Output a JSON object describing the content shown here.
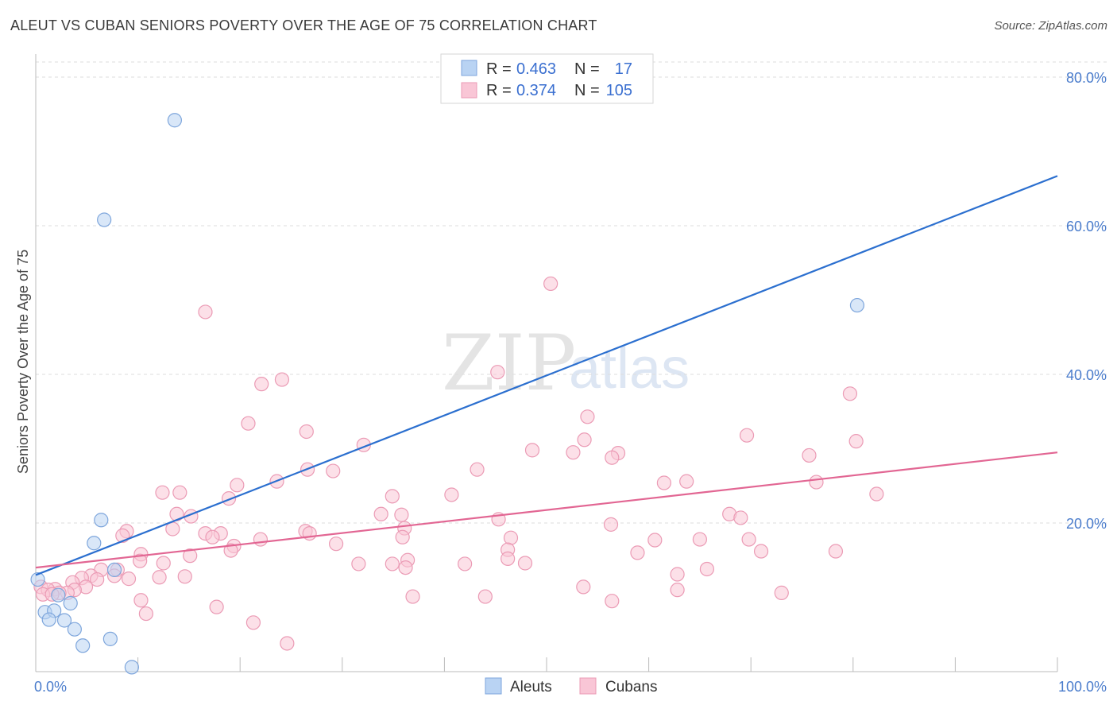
{
  "header": {
    "title": "ALEUT VS CUBAN SENIORS POVERTY OVER THE AGE OF 75 CORRELATION CHART",
    "source": "Source: ZipAtlas.com"
  },
  "watermark": {
    "zip": "ZIP",
    "atlas": "atlas"
  },
  "legend": {
    "r_label": "R =",
    "n_label": "N =",
    "rows": [
      {
        "series": "Aleuts",
        "r": "0.463",
        "n": "17"
      },
      {
        "series": "Cubans",
        "r": "0.374",
        "n": "105"
      }
    ]
  },
  "colors": {
    "aleuts_fill": "#b9d3f3",
    "aleuts_stroke": "#7ea6dc",
    "aleuts_line": "#2b6fcf",
    "cubans_fill": "#f9c6d6",
    "cubans_stroke": "#eb9bb5",
    "cubans_line": "#e26693",
    "axis_label": "#4a7ccc",
    "grid": "#dedede"
  },
  "chart_data": {
    "type": "scatter",
    "title": "ALEUT VS CUBAN SENIORS POVERTY OVER THE AGE OF 75 CORRELATION CHART",
    "xlabel": "",
    "ylabel": "Seniors Poverty Over the Age of 75",
    "xlim": [
      0,
      100
    ],
    "ylim": [
      0,
      80
    ],
    "x_tick_labels": [
      {
        "value": 0,
        "label": "0.0%"
      },
      {
        "value": 100,
        "label": "100.0%"
      }
    ],
    "y_tick_labels": [
      {
        "value": 20,
        "label": "20.0%"
      },
      {
        "value": 40,
        "label": "40.0%"
      },
      {
        "value": 60,
        "label": "60.0%"
      },
      {
        "value": 80,
        "label": "80.0%"
      }
    ],
    "legend_position": "top-center",
    "series": [
      {
        "name": "Aleuts",
        "r": 0.463,
        "n": 17,
        "trend": {
          "x": [
            0,
            100
          ],
          "y": [
            13.0,
            66.7
          ]
        },
        "points": [
          [
            13.6,
            74.2
          ],
          [
            6.7,
            60.8
          ],
          [
            80.4,
            49.3
          ],
          [
            6.4,
            20.4
          ],
          [
            5.7,
            17.3
          ],
          [
            7.7,
            13.7
          ],
          [
            0.2,
            12.4
          ],
          [
            2.2,
            10.3
          ],
          [
            3.4,
            9.2
          ],
          [
            0.9,
            8.0
          ],
          [
            1.8,
            8.2
          ],
          [
            1.3,
            7.0
          ],
          [
            2.8,
            6.9
          ],
          [
            3.8,
            5.7
          ],
          [
            7.3,
            4.4
          ],
          [
            4.6,
            3.5
          ],
          [
            9.4,
            0.6
          ]
        ]
      },
      {
        "name": "Cubans",
        "r": 0.374,
        "n": 105,
        "trend": {
          "x": [
            0,
            100
          ],
          "y": [
            14.0,
            29.5
          ]
        },
        "points": [
          [
            50.4,
            52.2
          ],
          [
            16.6,
            48.4
          ],
          [
            45.2,
            40.3
          ],
          [
            24.1,
            39.3
          ],
          [
            22.1,
            38.7
          ],
          [
            79.7,
            37.4
          ],
          [
            54.0,
            34.3
          ],
          [
            20.8,
            33.4
          ],
          [
            26.5,
            32.3
          ],
          [
            69.6,
            31.8
          ],
          [
            53.7,
            31.2
          ],
          [
            80.3,
            31.0
          ],
          [
            32.1,
            30.5
          ],
          [
            48.6,
            29.8
          ],
          [
            52.6,
            29.5
          ],
          [
            57.0,
            29.4
          ],
          [
            56.4,
            28.8
          ],
          [
            75.7,
            29.1
          ],
          [
            26.6,
            27.2
          ],
          [
            43.2,
            27.2
          ],
          [
            29.1,
            27.0
          ],
          [
            23.6,
            25.6
          ],
          [
            19.7,
            25.1
          ],
          [
            63.7,
            25.6
          ],
          [
            76.4,
            25.5
          ],
          [
            61.5,
            25.4
          ],
          [
            12.4,
            24.1
          ],
          [
            14.1,
            24.1
          ],
          [
            18.9,
            23.3
          ],
          [
            34.9,
            23.6
          ],
          [
            40.7,
            23.8
          ],
          [
            82.3,
            23.9
          ],
          [
            33.8,
            21.2
          ],
          [
            67.9,
            21.2
          ],
          [
            35.8,
            21.1
          ],
          [
            13.8,
            21.2
          ],
          [
            15.2,
            20.9
          ],
          [
            45.3,
            20.5
          ],
          [
            69.0,
            20.7
          ],
          [
            56.3,
            19.8
          ],
          [
            13.4,
            19.2
          ],
          [
            26.4,
            18.9
          ],
          [
            26.8,
            18.6
          ],
          [
            36.1,
            19.3
          ],
          [
            16.6,
            18.6
          ],
          [
            18.1,
            18.6
          ],
          [
            17.3,
            18.1
          ],
          [
            35.9,
            18.1
          ],
          [
            8.9,
            18.9
          ],
          [
            8.5,
            18.3
          ],
          [
            22.0,
            17.8
          ],
          [
            60.6,
            17.7
          ],
          [
            46.5,
            18.0
          ],
          [
            29.4,
            17.2
          ],
          [
            65.0,
            17.8
          ],
          [
            69.8,
            17.8
          ],
          [
            19.4,
            16.9
          ],
          [
            19.1,
            16.3
          ],
          [
            46.2,
            16.4
          ],
          [
            10.3,
            15.8
          ],
          [
            15.1,
            15.6
          ],
          [
            78.3,
            16.2
          ],
          [
            58.9,
            16.0
          ],
          [
            71.0,
            16.2
          ],
          [
            36.4,
            15.0
          ],
          [
            46.2,
            15.2
          ],
          [
            10.2,
            14.9
          ],
          [
            62.8,
            13.1
          ],
          [
            47.9,
            14.6
          ],
          [
            34.9,
            14.5
          ],
          [
            12.5,
            14.6
          ],
          [
            42.0,
            14.5
          ],
          [
            36.2,
            14.0
          ],
          [
            8.0,
            13.7
          ],
          [
            31.6,
            14.5
          ],
          [
            6.4,
            13.7
          ],
          [
            65.7,
            13.8
          ],
          [
            5.4,
            12.9
          ],
          [
            4.5,
            12.6
          ],
          [
            14.6,
            12.8
          ],
          [
            7.7,
            12.9
          ],
          [
            9.1,
            12.5
          ],
          [
            12.1,
            12.7
          ],
          [
            6.0,
            12.4
          ],
          [
            3.6,
            12.0
          ],
          [
            4.9,
            11.4
          ],
          [
            0.5,
            11.4
          ],
          [
            3.8,
            11.0
          ],
          [
            1.9,
            11.1
          ],
          [
            1.2,
            11.0
          ],
          [
            3.1,
            10.6
          ],
          [
            2.3,
            10.6
          ],
          [
            0.7,
            10.4
          ],
          [
            1.6,
            10.4
          ],
          [
            73.0,
            10.6
          ],
          [
            53.6,
            11.4
          ],
          [
            62.8,
            11.0
          ],
          [
            44.0,
            10.1
          ],
          [
            36.9,
            10.1
          ],
          [
            56.4,
            9.5
          ],
          [
            10.3,
            9.6
          ],
          [
            17.7,
            8.7
          ],
          [
            10.8,
            7.8
          ],
          [
            21.3,
            6.6
          ],
          [
            24.6,
            3.8
          ]
        ]
      }
    ]
  }
}
